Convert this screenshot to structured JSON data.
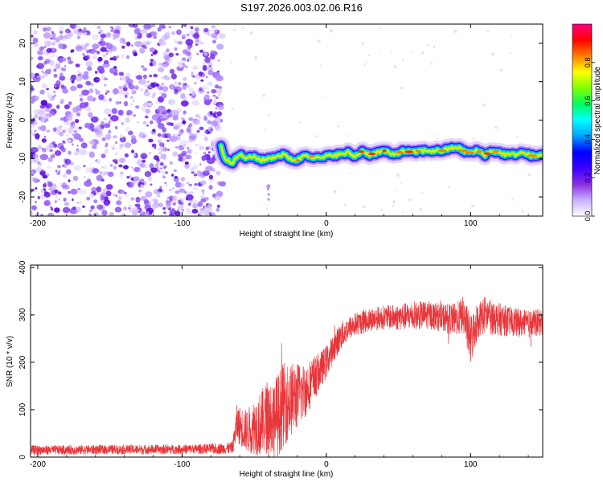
{
  "title": "S197.2026.003.02.06.R16",
  "chart_data": [
    {
      "type": "heatmap",
      "xlabel": "Height of straight line (km)",
      "ylabel": "Frequency (Hz)",
      "xlim": [
        -205,
        150
      ],
      "ylim": [
        -25,
        25
      ],
      "xticks": [
        -200,
        -100,
        0,
        100
      ],
      "xtick_labels": [
        "-200",
        "-100",
        "0",
        "100"
      ],
      "yticks": [
        -20,
        -10,
        0,
        10,
        20
      ],
      "ytick_labels": [
        "-20",
        "-10",
        "0",
        "10",
        "20"
      ],
      "noise_region_x": [
        -205,
        -72
      ],
      "ridge": {
        "x": [
          -73,
          -70,
          -65,
          -60,
          -55,
          -50,
          -45,
          -40,
          -35,
          -30,
          -25,
          -20,
          -15,
          -10,
          -5,
          0,
          5,
          10,
          15,
          20,
          25,
          30,
          35,
          40,
          45,
          50,
          55,
          60,
          65,
          70,
          75,
          80,
          85,
          90,
          95,
          100,
          105,
          110,
          115,
          120,
          125,
          130,
          135,
          140,
          145,
          150
        ],
        "y": [
          -7,
          -10,
          -11,
          -9,
          -10,
          -9.5,
          -10.5,
          -10,
          -9.5,
          -9,
          -10,
          -10.5,
          -9,
          -9.5,
          -10,
          -9.5,
          -9,
          -9,
          -8.5,
          -9.5,
          -8,
          -9,
          -8.5,
          -8,
          -9,
          -8.5,
          -8,
          -8.5,
          -8,
          -8,
          -8,
          -8,
          -7.5,
          -7,
          -8,
          -8.5,
          -8,
          -9,
          -8,
          -8.5,
          -9,
          -9,
          -8.5,
          -9,
          -9.5,
          -9
        ]
      },
      "colorbar": {
        "label": "Normalized spectral amplitude",
        "range": [
          0,
          1
        ],
        "ticks": [
          0.0,
          0.2,
          0.4,
          0.6,
          0.8
        ],
        "tick_labels": [
          "0.0",
          "0.2",
          "0.4",
          "0.6",
          "0.8"
        ],
        "colors": [
          "#ffffff",
          "#c9b0ff",
          "#8a2be2",
          "#3a00ff",
          "#0000ff",
          "#00a0ff",
          "#00ffff",
          "#00ff60",
          "#7fff00",
          "#ffff00",
          "#ff8000",
          "#ff0000",
          "#ff0080"
        ]
      }
    },
    {
      "type": "line",
      "xlabel": "Height of straight line (km)",
      "ylabel": "SNR (10 * v/v)",
      "xlim": [
        -205,
        150
      ],
      "ylim": [
        0,
        405
      ],
      "xticks": [
        -200,
        -100,
        0,
        100
      ],
      "xtick_labels": [
        "-200",
        "-100",
        "0",
        "100"
      ],
      "yticks": [
        0,
        100,
        200,
        300,
        400
      ],
      "ytick_labels": [
        "0",
        "100",
        "200",
        "300",
        "400"
      ],
      "color": "#e8373b",
      "envelope": {
        "x": [
          -205,
          -180,
          -150,
          -120,
          -90,
          -70,
          -65,
          -62,
          -55,
          -50,
          -45,
          -40,
          -35,
          -30,
          -25,
          -20,
          -15,
          -10,
          -5,
          0,
          5,
          10,
          15,
          20,
          25,
          30,
          40,
          50,
          60,
          70,
          80,
          90,
          95,
          100,
          105,
          110,
          120,
          130,
          140,
          150
        ],
        "mean": [
          15,
          15,
          16,
          16,
          17,
          18,
          20,
          70,
          55,
          65,
          70,
          90,
          80,
          110,
          120,
          130,
          140,
          160,
          180,
          200,
          230,
          255,
          270,
          280,
          285,
          290,
          295,
          295,
          298,
          300,
          295,
          290,
          300,
          245,
          290,
          300,
          290,
          285,
          280,
          285
        ],
        "spread": [
          10,
          10,
          10,
          10,
          10,
          12,
          12,
          40,
          45,
          60,
          70,
          80,
          90,
          90,
          80,
          70,
          60,
          50,
          40,
          35,
          30,
          30,
          25,
          25,
          25,
          25,
          25,
          28,
          30,
          30,
          30,
          35,
          40,
          55,
          40,
          40,
          35,
          30,
          30,
          28
        ]
      }
    }
  ]
}
